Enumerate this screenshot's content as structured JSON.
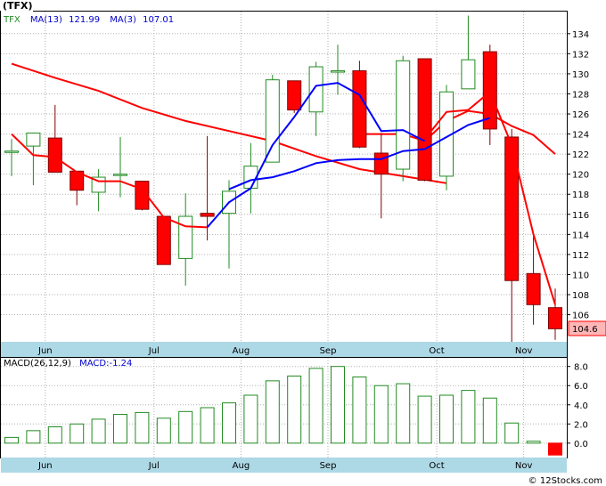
{
  "ticker_label": "(TFX)",
  "footer_text": "© 12Stocks.com",
  "chart_data": [
    {
      "type": "candlestick",
      "legend": {
        "symbol": "TFX",
        "ma13_label": "MA(13)",
        "ma13_value": "121.99",
        "ma3_label": "MA(3)",
        "ma3_value": "107.01"
      },
      "colors": {
        "up": "#228B22",
        "down": "#ff0000",
        "ma13": "#ff0000",
        "ma3": "#0000ff",
        "axis_band": "#add8e6"
      },
      "ylim": [
        103.3,
        136.2
      ],
      "y_ticks": [
        106,
        108,
        110,
        112,
        114,
        116,
        118,
        120,
        122,
        124,
        126,
        128,
        130,
        132,
        134
      ],
      "x_tick_labels": [
        "Jun",
        "Jul",
        "Aug",
        "Sep",
        "Oct",
        "Nov"
      ],
      "x_tick_index": [
        1,
        6,
        10,
        14,
        19,
        23
      ],
      "last_price_label": "104.6",
      "candles": [
        {
          "open": 122.3,
          "high": 123.5,
          "low": 119.8,
          "close": 122.3
        },
        {
          "open": 122.8,
          "high": 123.8,
          "low": 118.9,
          "close": 124.1
        },
        {
          "open": 123.6,
          "high": 126.9,
          "low": 120.2,
          "close": 120.2
        },
        {
          "open": 120.3,
          "high": 120.3,
          "low": 116.9,
          "close": 118.4
        },
        {
          "open": 118.2,
          "high": 120.5,
          "low": 116.3,
          "close": 119.7
        },
        {
          "open": 120.0,
          "high": 123.7,
          "low": 117.7,
          "close": 120.0
        },
        {
          "open": 119.3,
          "high": 119.3,
          "low": 116.4,
          "close": 116.5
        },
        {
          "open": 115.8,
          "high": 115.8,
          "low": 111.0,
          "close": 111.0
        },
        {
          "open": 111.6,
          "high": 118.1,
          "low": 108.9,
          "close": 115.8
        },
        {
          "open": 116.1,
          "high": 123.8,
          "low": 113.4,
          "close": 115.8
        },
        {
          "open": 116.1,
          "high": 119.4,
          "low": 110.6,
          "close": 118.3
        },
        {
          "open": 118.6,
          "high": 123.1,
          "low": 116.1,
          "close": 120.8
        },
        {
          "open": 121.2,
          "high": 129.9,
          "low": 121.2,
          "close": 129.4
        },
        {
          "open": 129.3,
          "high": 129.3,
          "low": 126.1,
          "close": 126.4
        },
        {
          "open": 126.2,
          "high": 131.2,
          "low": 123.8,
          "close": 130.7
        },
        {
          "open": 130.3,
          "high": 132.9,
          "low": 127.9,
          "close": 130.3
        },
        {
          "open": 130.3,
          "high": 131.3,
          "low": 122.6,
          "close": 122.7
        },
        {
          "open": 122.1,
          "high": 124.1,
          "low": 115.6,
          "close": 120.0
        },
        {
          "open": 120.5,
          "high": 131.8,
          "low": 119.3,
          "close": 131.3
        },
        {
          "open": 131.5,
          "high": 131.5,
          "low": 119.3,
          "close": 119.4
        },
        {
          "open": 119.8,
          "high": 128.9,
          "low": 118.4,
          "close": 128.2
        },
        {
          "open": 128.5,
          "high": 135.8,
          "low": 128.5,
          "close": 131.4
        },
        {
          "open": 132.2,
          "high": 132.9,
          "low": 122.9,
          "close": 124.5
        },
        {
          "open": 123.7,
          "high": 124.5,
          "low": 103.3,
          "close": 109.4
        },
        {
          "open": 110.1,
          "high": 114.1,
          "low": 105.0,
          "close": 107.0
        },
        {
          "open": 106.7,
          "high": 108.6,
          "low": 103.5,
          "close": 104.6
        }
      ],
      "ma13": [
        {
          "i": 0,
          "v": 131.0
        },
        {
          "i": 2,
          "v": 129.6
        },
        {
          "i": 4,
          "v": 128.3
        },
        {
          "i": 6,
          "v": 126.6
        },
        {
          "i": 8,
          "v": 125.3
        },
        {
          "i": 10,
          "v": 124.3
        },
        {
          "i": 12,
          "v": 123.3
        },
        {
          "i": 14,
          "v": 121.8
        },
        {
          "i": 16,
          "v": 120.5
        },
        {
          "i": 18,
          "v": 119.8
        },
        {
          "i": 20,
          "v": 119.1
        }
      ],
      "ma13_b": [
        {
          "i": 16,
          "v": 124.0
        },
        {
          "i": 17,
          "v": 124.0
        },
        {
          "i": 18,
          "v": 124.0
        },
        {
          "i": 19,
          "v": 123.3
        },
        {
          "i": 20,
          "v": 125.3
        },
        {
          "i": 21,
          "v": 126.3
        },
        {
          "i": 22,
          "v": 126.0
        },
        {
          "i": 23,
          "v": 124.8
        },
        {
          "i": 24,
          "v": 123.9
        },
        {
          "i": 25,
          "v": 122.0
        }
      ],
      "ma3": [
        {
          "i": 0,
          "v": 124.0
        },
        {
          "i": 1,
          "v": 121.9
        },
        {
          "i": 2,
          "v": 121.7
        },
        {
          "i": 3,
          "v": 120.2
        },
        {
          "i": 4,
          "v": 119.3
        },
        {
          "i": 5,
          "v": 119.3
        },
        {
          "i": 6,
          "v": 118.5
        },
        {
          "i": 7,
          "v": 115.7
        },
        {
          "i": 8,
          "v": 114.8
        },
        {
          "i": 9,
          "v": 114.7
        }
      ],
      "ma3_b": [
        {
          "i": 9,
          "v": 114.7
        },
        {
          "i": 10,
          "v": 117.2
        },
        {
          "i": 11,
          "v": 118.6
        },
        {
          "i": 12,
          "v": 122.9
        },
        {
          "i": 13,
          "v": 125.7
        },
        {
          "i": 14,
          "v": 128.8
        },
        {
          "i": 15,
          "v": 129.1
        },
        {
          "i": 16,
          "v": 127.9
        },
        {
          "i": 17,
          "v": 124.3
        },
        {
          "i": 18,
          "v": 124.4
        },
        {
          "i": 19,
          "v": 123.3
        }
      ],
      "ma3_c": [
        {
          "i": 19,
          "v": 123.5
        },
        {
          "i": 20,
          "v": 126.2
        },
        {
          "i": 21,
          "v": 126.4
        },
        {
          "i": 22,
          "v": 128.2
        },
        {
          "i": 23,
          "v": 122.9
        },
        {
          "i": 24,
          "v": 114.0
        },
        {
          "i": 25,
          "v": 107.0
        }
      ],
      "ma_lower": [
        {
          "i": 10,
          "v": 118.5
        },
        {
          "i": 11,
          "v": 119.4
        },
        {
          "i": 12,
          "v": 119.7
        },
        {
          "i": 13,
          "v": 120.3
        },
        {
          "i": 14,
          "v": 121.1
        },
        {
          "i": 15,
          "v": 121.4
        },
        {
          "i": 16,
          "v": 121.5
        },
        {
          "i": 17,
          "v": 121.5
        },
        {
          "i": 18,
          "v": 122.3
        },
        {
          "i": 19,
          "v": 122.5
        },
        {
          "i": 20,
          "v": 123.7
        },
        {
          "i": 21,
          "v": 124.9
        },
        {
          "i": 22,
          "v": 125.6
        }
      ]
    },
    {
      "type": "bar",
      "legend": {
        "label": "MACD(26,12,9)",
        "value_label": "MACD:-1.24"
      },
      "ylim": [
        -1.5,
        8.9
      ],
      "y_ticks": [
        0.0,
        2.0,
        4.0,
        6.0,
        8.0
      ],
      "y_tick_labels": [
        "0.0",
        "2.0",
        "4.0",
        "6.0",
        "8.0"
      ],
      "x_tick_labels": [
        "Jun",
        "Jul",
        "Aug",
        "Sep",
        "Oct",
        "Nov"
      ],
      "values": [
        0.6,
        1.3,
        1.7,
        2.0,
        2.5,
        3.0,
        3.2,
        2.6,
        3.3,
        3.7,
        4.2,
        5.0,
        6.5,
        7.0,
        7.8,
        8.0,
        6.9,
        6.0,
        6.2,
        4.9,
        5.0,
        5.5,
        4.7,
        2.1,
        0.2,
        -1.24
      ],
      "colors": {
        "positive": "#228B22",
        "negative": "#ff0000"
      }
    }
  ]
}
